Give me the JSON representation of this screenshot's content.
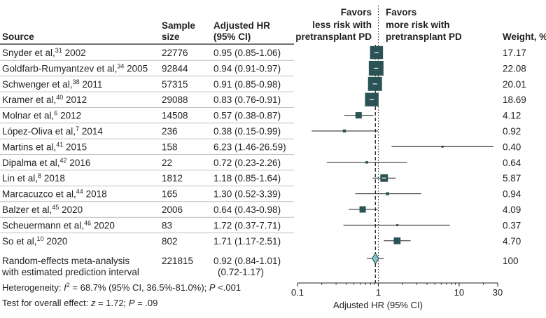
{
  "headers": {
    "source": "Source",
    "sample_line1": "Sample",
    "sample_line2": "size",
    "hr_line1": "Adjusted HR",
    "hr_line2": "(95% CI)",
    "favors_left_line1": "Favors",
    "favors_left_line2": "less risk with",
    "favors_left_line3": "pretransplant PD",
    "favors_right_line1": "Favors",
    "favors_right_line2": "more risk with",
    "favors_right_line3": "pretransplant PD",
    "weight": "Weight, %"
  },
  "pooled": {
    "label_line1": "Random-effects meta-analysis",
    "label_line2": "with estimated prediction interval",
    "size": "221815",
    "ci_text_line1": "0.92 (0.84-1.01)",
    "ci_text_line2": "(0.72-1.17)",
    "weight": "100"
  },
  "footer": {
    "heterogeneity": "Heterogeneity: I² = 68.7% (95% CI, 36.5%-81.0%); P < .001",
    "overall_effect": "Test for overall effect: z = 1.72; P = .09"
  },
  "colors": {
    "marker": "#2b5254",
    "diamond": "#7dc5c9",
    "line": "#231f20",
    "rule": "#231f20"
  },
  "chart_data": {
    "type": "forest",
    "xlabel": "Adjusted HR (95% CI)",
    "x_scale": "log",
    "xlim": [
      0.1,
      30
    ],
    "x_ticks": [
      0.1,
      1,
      10,
      30
    ],
    "x_tick_labels": [
      "0.1",
      "1",
      "10",
      "30"
    ],
    "null_line": 1,
    "pooled_estimate_line": 0.92,
    "studies": [
      {
        "source": "Snyder et al,",
        "ref": "31",
        "year": "2002",
        "size": "22776",
        "hr": 0.95,
        "lo": 0.85,
        "hi": 1.06,
        "ci_text": "0.95 (0.85-1.06)",
        "weight": 17.17,
        "weight_text": "17.17"
      },
      {
        "source": "Goldfarb-Rumyantzev et al,",
        "ref": "34",
        "year": "2005",
        "size": "92844",
        "hr": 0.94,
        "lo": 0.91,
        "hi": 0.97,
        "ci_text": "0.94 (0.91-0.97)",
        "weight": 22.08,
        "weight_text": "22.08"
      },
      {
        "source": "Schwenger et al,",
        "ref": "38",
        "year": "2011",
        "size": "57315",
        "hr": 0.91,
        "lo": 0.85,
        "hi": 0.98,
        "ci_text": "0.91 (0.85-0.98)",
        "weight": 20.01,
        "weight_text": "20.01"
      },
      {
        "source": "Kramer et al,",
        "ref": "40",
        "year": "2012",
        "size": "29088",
        "hr": 0.83,
        "lo": 0.76,
        "hi": 0.91,
        "ci_text": "0.83 (0.76-0.91)",
        "weight": 18.69,
        "weight_text": "18.69"
      },
      {
        "source": "Molnar et al,",
        "ref": "6",
        "year": "2012",
        "size": "14508",
        "hr": 0.57,
        "lo": 0.38,
        "hi": 0.87,
        "ci_text": "0.57 (0.38-0.87)",
        "weight": 4.12,
        "weight_text": "4.12"
      },
      {
        "source": "López-Oliva et al,",
        "ref": "7",
        "year": "2014",
        "size": "236",
        "hr": 0.38,
        "lo": 0.15,
        "hi": 0.99,
        "ci_text": "0.38 (0.15-0.99)",
        "weight": 0.92,
        "weight_text": "0.92"
      },
      {
        "source": "Martins et al,",
        "ref": "41",
        "year": "2015",
        "size": "158",
        "hr": 6.23,
        "lo": 1.46,
        "hi": 26.59,
        "ci_text": "6.23 (1.46-26.59)",
        "weight": 0.4,
        "weight_text": "0.40"
      },
      {
        "source": "Dipalma et al,",
        "ref": "42",
        "year": "2016",
        "size": "22",
        "hr": 0.72,
        "lo": 0.23,
        "hi": 2.26,
        "ci_text": "0.72 (0.23-2.26)",
        "weight": 0.64,
        "weight_text": "0.64"
      },
      {
        "source": "Lin et al,",
        "ref": "8",
        "year": "2018",
        "size": "1812",
        "hr": 1.18,
        "lo": 0.85,
        "hi": 1.64,
        "ci_text": "1.18 (0.85-1.64)",
        "weight": 5.87,
        "weight_text": "5.87"
      },
      {
        "source": "Marcacuzco et al,",
        "ref": "44",
        "year": "2018",
        "size": "165",
        "hr": 1.3,
        "lo": 0.52,
        "hi": 3.39,
        "ci_text": "1.30 (0.52-3.39)",
        "weight": 0.94,
        "weight_text": "0.94"
      },
      {
        "source": "Balzer et al,",
        "ref": "45",
        "year": "2020",
        "size": "2006",
        "hr": 0.64,
        "lo": 0.43,
        "hi": 0.98,
        "ci_text": "0.64 (0.43-0.98)",
        "weight": 4.09,
        "weight_text": "4.09"
      },
      {
        "source": "Scheuermann et al,",
        "ref": "46",
        "year": "2020",
        "size": "83",
        "hr": 1.72,
        "lo": 0.37,
        "hi": 7.71,
        "ci_text": "1.72 (0.37-7.71)",
        "weight": 0.37,
        "weight_text": "0.37"
      },
      {
        "source": "So et al,",
        "ref": "10",
        "year": "2020",
        "size": "802",
        "hr": 1.71,
        "lo": 1.17,
        "hi": 2.51,
        "ci_text": "1.71 (1.17-2.51)",
        "weight": 4.7,
        "weight_text": "4.70"
      }
    ],
    "pooled": {
      "hr": 0.92,
      "lo": 0.84,
      "hi": 1.01,
      "pi_lo": 0.72,
      "pi_hi": 1.17
    }
  }
}
